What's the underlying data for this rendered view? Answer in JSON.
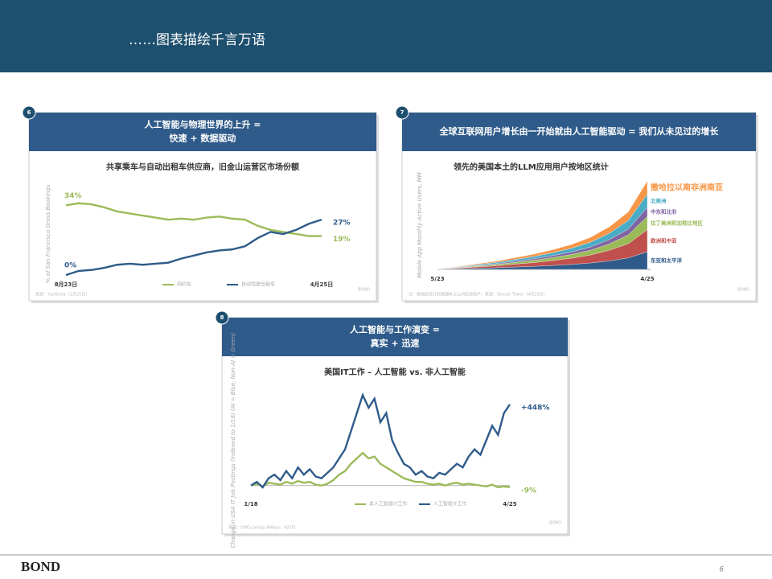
{
  "header": {
    "title": "……图表描绘千言万语"
  },
  "footer": {
    "brand": "BOND",
    "page": "6"
  },
  "chart_data": [
    {
      "type": "line",
      "number": "6",
      "title": [
        "人工智能与物理世界的上升 =",
        "快速 + 数据驱动"
      ],
      "subtitle": "共享乘车与自动出租车供应商，旧金山运营区市场份额",
      "ylabel": "% of San Francisco Gross Bookings",
      "categories": [
        "8月23日",
        null,
        null,
        null,
        null,
        null,
        null,
        null,
        null,
        null,
        null,
        null,
        null,
        null,
        null,
        null,
        null,
        null,
        null,
        null,
        "4月25日"
      ],
      "ylim": [
        0,
        40
      ],
      "series": [
        {
          "name": "网约车",
          "color": "#9bbb59",
          "values": [
            34,
            35,
            34.5,
            33,
            31,
            30,
            29,
            28,
            27,
            27.5,
            27,
            28,
            28.5,
            27.5,
            27,
            24,
            22,
            21,
            20,
            19,
            19
          ],
          "value_labels": [
            "34%",
            null,
            null,
            null,
            null,
            null,
            null,
            null,
            null,
            null,
            null,
            null,
            null,
            null,
            null,
            null,
            null,
            null,
            null,
            null,
            "19%"
          ]
        },
        {
          "name": "自动驾驶出租车",
          "color": "#2f5b8a",
          "values": [
            0,
            2,
            2.5,
            3.5,
            5,
            5.5,
            5,
            5.5,
            6,
            8,
            9.5,
            11,
            12,
            12.5,
            14,
            18,
            21,
            20,
            22,
            25,
            27
          ],
          "value_labels": [
            "0%",
            null,
            null,
            null,
            null,
            null,
            null,
            null,
            null,
            null,
            null,
            null,
            null,
            null,
            null,
            null,
            null,
            null,
            null,
            null,
            "27%"
          ]
        }
      ],
      "source": "来源：YipitData（1月25日）",
      "credit": "BOND"
    },
    {
      "type": "area",
      "number": "7",
      "title": [
        "全球互联网用户增长由一开始就由人工智能驱动 = 我们从未见过的增长"
      ],
      "subtitle": "领先的美国本土的LLM应用用户按地区统计",
      "ylabel": "Mobile App Monthly Active Users, MM",
      "categories": [
        "5/23",
        null,
        null,
        null,
        null,
        null,
        null,
        null,
        null,
        null,
        null,
        "4/25"
      ],
      "ylim": [
        0,
        100
      ],
      "series": [
        {
          "name": "东亚和太平洋",
          "color": "#2f5b8a",
          "values": [
            0.2,
            0.6,
            1.2,
            1.8,
            2.6,
            3.4,
            4.4,
            5.6,
            7.2,
            9.6,
            13,
            20
          ]
        },
        {
          "name": "欧洲和中亚",
          "color": "#c0504d",
          "values": [
            0.3,
            0.8,
            1.5,
            2.2,
            3.2,
            4.2,
            5.5,
            7,
            9,
            12,
            16,
            25
          ]
        },
        {
          "name": "拉丁美洲和加勒比地区",
          "color": "#9bbb59",
          "values": [
            0.1,
            0.4,
            0.9,
            1.4,
            2,
            2.6,
            3.3,
            4.2,
            5.4,
            7.2,
            10,
            15
          ]
        },
        {
          "name": "中东和北非",
          "color": "#8064a2",
          "values": [
            0.1,
            0.3,
            0.6,
            0.9,
            1.3,
            1.7,
            2.2,
            2.8,
            3.6,
            4.8,
            6.5,
            10
          ]
        },
        {
          "name": "北美洲",
          "color": "#4bacc6",
          "values": [
            0.2,
            0.5,
            0.9,
            1.4,
            1.9,
            2.5,
            3.3,
            4.2,
            5.4,
            7.2,
            9.8,
            15
          ]
        },
        {
          "name": "撒哈拉以南非洲南亚",
          "color": "#f79646",
          "values": [
            0.1,
            0.4,
            0.9,
            1.3,
            2,
            2.6,
            3.3,
            4.2,
            5.4,
            7.2,
            9.7,
            15
          ]
        }
      ],
      "source": "注：按地区统计的美国本土LLM应用用户；来源：Sensor Tower（4月25日）",
      "credit": "BOND"
    },
    {
      "type": "line",
      "number": "8",
      "title": [
        "人工智能与工作演变 =",
        "真实 + 迅速"
      ],
      "subtitle": "美国IT工作 – 人工智能 vs. 非人工智能",
      "ylabel": "Change in USA IT Job Postings (Indexed to 1/18) (AI = Blue, Non-AI = Green)",
      "categories": [
        "1/18",
        null,
        null,
        null,
        null,
        null,
        null,
        null,
        null,
        null,
        null,
        null,
        null,
        null,
        null,
        null,
        null,
        null,
        null,
        null,
        null,
        null,
        null,
        null,
        null,
        null,
        null,
        null,
        null,
        null,
        null,
        null,
        null,
        null,
        null,
        null,
        null,
        null,
        null,
        null,
        null,
        null,
        null,
        null,
        "4/25"
      ],
      "ylim": [
        -50,
        550
      ],
      "series": [
        {
          "name": "非人工智能IT工作",
          "color": "#9bbb59",
          "values": [
            0,
            10,
            -5,
            15,
            10,
            5,
            20,
            10,
            25,
            15,
            20,
            5,
            0,
            10,
            30,
            60,
            80,
            120,
            150,
            180,
            150,
            160,
            120,
            100,
            80,
            60,
            40,
            30,
            20,
            20,
            10,
            5,
            10,
            0,
            10,
            15,
            5,
            10,
            5,
            0,
            -5,
            5,
            -10,
            -5,
            -9
          ],
          "value_labels": [
            null,
            null,
            null,
            null,
            null,
            null,
            null,
            null,
            null,
            null,
            null,
            null,
            null,
            null,
            null,
            null,
            null,
            null,
            null,
            null,
            null,
            null,
            null,
            null,
            null,
            null,
            null,
            null,
            null,
            null,
            null,
            null,
            null,
            null,
            null,
            null,
            null,
            null,
            null,
            null,
            null,
            null,
            null,
            null,
            "-9%"
          ]
        },
        {
          "name": "人工智能IT工作",
          "color": "#2f5b8a",
          "values": [
            0,
            20,
            -10,
            40,
            60,
            30,
            80,
            40,
            100,
            60,
            90,
            50,
            40,
            70,
            100,
            150,
            200,
            300,
            400,
            500,
            430,
            480,
            350,
            400,
            250,
            180,
            120,
            100,
            60,
            80,
            50,
            40,
            70,
            60,
            90,
            120,
            100,
            160,
            200,
            170,
            250,
            330,
            280,
            400,
            448
          ],
          "value_labels": [
            null,
            null,
            null,
            null,
            null,
            null,
            null,
            null,
            null,
            null,
            null,
            null,
            null,
            null,
            null,
            null,
            null,
            null,
            null,
            null,
            null,
            null,
            null,
            null,
            null,
            null,
            null,
            null,
            null,
            null,
            null,
            null,
            null,
            null,
            null,
            null,
            null,
            null,
            null,
            null,
            null,
            null,
            null,
            null,
            "+448%"
          ]
        }
      ],
      "source": "来源：UMD-LinkUp AIMaps（4/25）",
      "credit": "BOND"
    }
  ]
}
